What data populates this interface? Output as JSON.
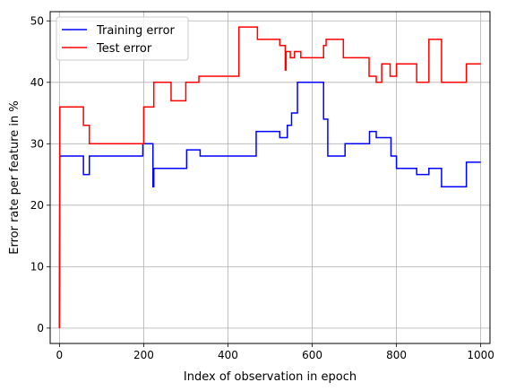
{
  "chart_data": {
    "type": "line",
    "xlabel": "Index of observation in epoch",
    "ylabel": "Error rate per feature in %",
    "xlim": [
      -22,
      1022
    ],
    "ylim": [
      -2.5,
      51.5
    ],
    "xticks": [
      0,
      200,
      400,
      600,
      800,
      1000
    ],
    "yticks": [
      0,
      10,
      20,
      30,
      40,
      50
    ],
    "grid": true,
    "legend_position": "top-left",
    "series": [
      {
        "name": "Training error",
        "color": "#0000ff",
        "step": true,
        "points": [
          [
            0,
            0
          ],
          [
            1,
            28
          ],
          [
            57,
            28
          ],
          [
            57,
            25
          ],
          [
            71,
            25
          ],
          [
            71,
            28
          ],
          [
            198,
            28
          ],
          [
            198,
            30
          ],
          [
            222,
            30
          ],
          [
            222,
            23
          ],
          [
            224,
            23
          ],
          [
            224,
            26
          ],
          [
            302,
            26
          ],
          [
            302,
            29
          ],
          [
            334,
            29
          ],
          [
            334,
            28
          ],
          [
            467,
            28
          ],
          [
            467,
            32
          ],
          [
            523,
            32
          ],
          [
            523,
            31
          ],
          [
            541,
            31
          ],
          [
            541,
            33
          ],
          [
            551,
            33
          ],
          [
            551,
            35
          ],
          [
            565,
            35
          ],
          [
            565,
            40
          ],
          [
            627,
            40
          ],
          [
            627,
            34
          ],
          [
            637,
            34
          ],
          [
            637,
            28
          ],
          [
            678,
            28
          ],
          [
            678,
            30
          ],
          [
            736,
            30
          ],
          [
            736,
            32
          ],
          [
            752,
            32
          ],
          [
            752,
            31
          ],
          [
            787,
            31
          ],
          [
            787,
            28
          ],
          [
            800,
            28
          ],
          [
            800,
            26
          ],
          [
            848,
            26
          ],
          [
            848,
            25
          ],
          [
            877,
            25
          ],
          [
            877,
            26
          ],
          [
            907,
            26
          ],
          [
            907,
            23
          ],
          [
            966,
            23
          ],
          [
            966,
            27
          ],
          [
            1000,
            27
          ]
        ]
      },
      {
        "name": "Test error",
        "color": "#ff0000",
        "step": true,
        "points": [
          [
            0,
            0
          ],
          [
            1,
            36
          ],
          [
            57,
            36
          ],
          [
            57,
            33
          ],
          [
            71,
            33
          ],
          [
            71,
            30
          ],
          [
            200,
            30
          ],
          [
            200,
            36
          ],
          [
            224,
            36
          ],
          [
            224,
            40
          ],
          [
            265,
            40
          ],
          [
            265,
            37
          ],
          [
            300,
            37
          ],
          [
            300,
            40
          ],
          [
            331,
            40
          ],
          [
            331,
            41
          ],
          [
            426,
            41
          ],
          [
            426,
            49
          ],
          [
            470,
            49
          ],
          [
            470,
            47
          ],
          [
            523,
            47
          ],
          [
            523,
            46
          ],
          [
            536,
            46
          ],
          [
            536,
            42
          ],
          [
            538,
            42
          ],
          [
            538,
            45
          ],
          [
            548,
            45
          ],
          [
            548,
            44
          ],
          [
            558,
            44
          ],
          [
            558,
            45
          ],
          [
            573,
            45
          ],
          [
            573,
            44
          ],
          [
            627,
            44
          ],
          [
            627,
            46
          ],
          [
            633,
            46
          ],
          [
            633,
            47
          ],
          [
            674,
            47
          ],
          [
            674,
            44
          ],
          [
            735,
            44
          ],
          [
            735,
            41
          ],
          [
            752,
            41
          ],
          [
            752,
            40
          ],
          [
            765,
            40
          ],
          [
            765,
            43
          ],
          [
            785,
            43
          ],
          [
            785,
            41
          ],
          [
            800,
            41
          ],
          [
            800,
            43
          ],
          [
            848,
            43
          ],
          [
            848,
            40
          ],
          [
            877,
            40
          ],
          [
            877,
            47
          ],
          [
            907,
            47
          ],
          [
            907,
            40
          ],
          [
            966,
            40
          ],
          [
            966,
            43
          ],
          [
            1000,
            43
          ]
        ]
      }
    ]
  }
}
